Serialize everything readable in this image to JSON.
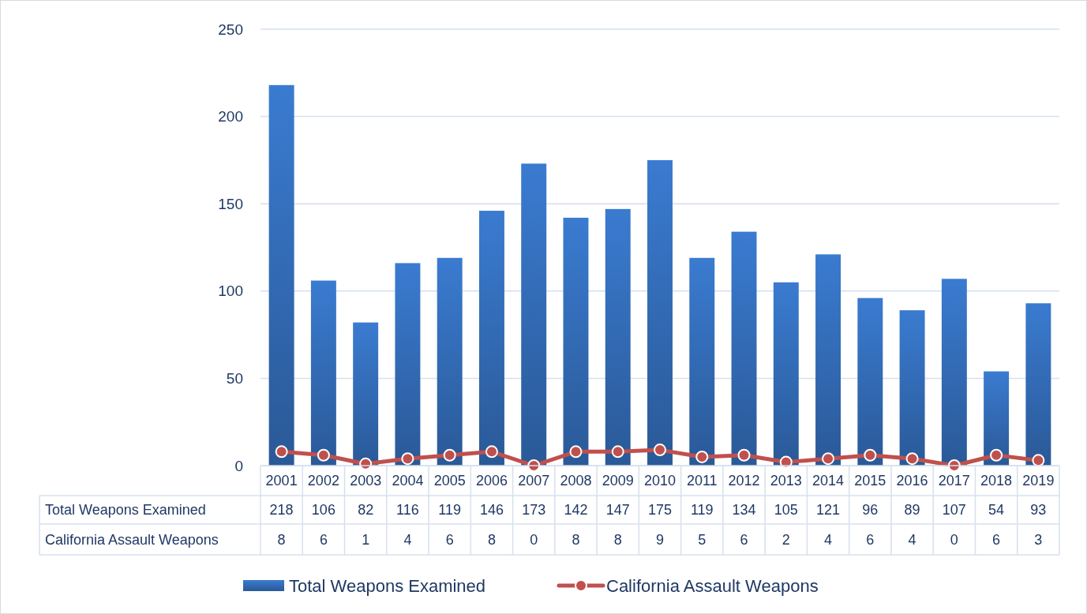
{
  "chart_data": {
    "type": "bar",
    "categories": [
      "2001",
      "2002",
      "2003",
      "2004",
      "2005",
      "2006",
      "2007",
      "2008",
      "2009",
      "2010",
      "2011",
      "2012",
      "2013",
      "2014",
      "2015",
      "2016",
      "2017",
      "2018",
      "2019"
    ],
    "series": [
      {
        "name": "Total Weapons Examined",
        "color": "#3a7bd0",
        "values": [
          218,
          106,
          82,
          116,
          119,
          146,
          173,
          142,
          147,
          175,
          119,
          134,
          105,
          121,
          96,
          89,
          107,
          54,
          93
        ]
      },
      {
        "name": "California Assault Weapons",
        "type": "line",
        "color": "#c0504d",
        "marker": "circle",
        "values": [
          8,
          6,
          1,
          4,
          6,
          8,
          0,
          8,
          8,
          9,
          5,
          6,
          2,
          4,
          6,
          4,
          0,
          6,
          3
        ]
      }
    ],
    "ylim": [
      0,
      250
    ],
    "yticks": [
      0,
      50,
      100,
      150,
      200,
      250
    ],
    "grid": "y",
    "legend": "bottom",
    "data_labels": true
  }
}
